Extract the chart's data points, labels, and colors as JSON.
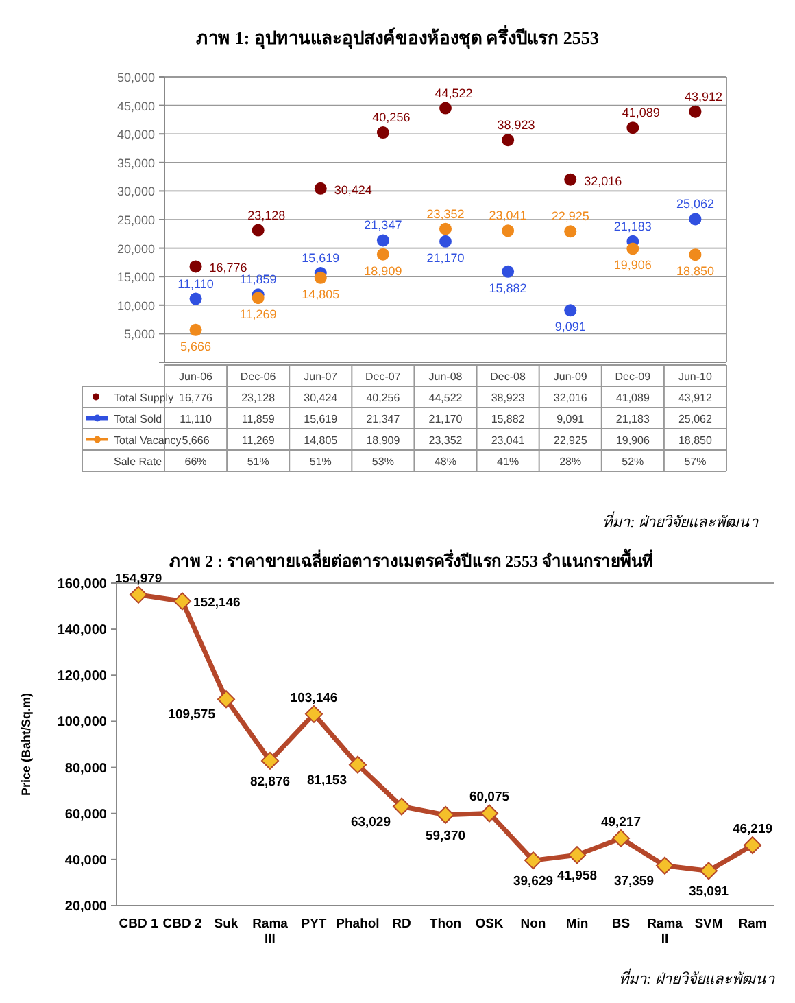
{
  "chart_data": [
    {
      "type": "scatter",
      "title": "ภาพ 1: อุปทานและอุปสงค์ของห้องชุด ครึ่งปีแรก 2553",
      "categories": [
        "Jun-06",
        "Dec-06",
        "Jun-07",
        "Dec-07",
        "Jun-08",
        "Dec-08",
        "Jun-09",
        "Dec-09",
        "Jun-10"
      ],
      "series": [
        {
          "name": "Total Supply",
          "color": "#800000",
          "values": [
            16776,
            23128,
            30424,
            40256,
            44522,
            38923,
            32016,
            41089,
            43912
          ],
          "value_labels": [
            "16,776",
            "23,128",
            "30,424",
            "40,256",
            "44,522",
            "38,923",
            "32,016",
            "41,089",
            "43,912"
          ]
        },
        {
          "name": "Total Sold",
          "color": "#3050e0",
          "values": [
            11110,
            11859,
            15619,
            21347,
            21170,
            15882,
            9091,
            21183,
            25062
          ],
          "value_labels": [
            "11,110",
            "11,859",
            "15,619",
            "21,347",
            "21,170",
            "15,882",
            "9,091",
            "21,183",
            "25,062"
          ]
        },
        {
          "name": "Total Vacancy",
          "color": "#f08a1c",
          "values": [
            5666,
            11269,
            14805,
            18909,
            23352,
            23041,
            22925,
            19906,
            18850
          ],
          "value_labels": [
            "5,666",
            "11,269",
            "14,805",
            "18,909",
            "23,352",
            "23,041",
            "22,925",
            "19,906",
            "18,850"
          ]
        }
      ],
      "ylim": [
        0,
        50000
      ],
      "yticks": [
        {
          "value": 0,
          "label": null
        },
        {
          "value": 5000,
          "label": "5,000"
        },
        {
          "value": 10000,
          "label": "10,000"
        },
        {
          "value": 15000,
          "label": "15,000"
        },
        {
          "value": 20000,
          "label": "20,000"
        },
        {
          "value": 25000,
          "label": "25,000"
        },
        {
          "value": 30000,
          "label": "30,000"
        },
        {
          "value": 35000,
          "label": "35,000"
        },
        {
          "value": 40000,
          "label": "40,000"
        },
        {
          "value": 45000,
          "label": "45,000"
        },
        {
          "value": 50000,
          "label": "50,000"
        }
      ],
      "grid": "y",
      "marker": "circle",
      "legend": "bottom",
      "annotations": [
        "Sale Rate",
        "66%",
        "51%",
        "51%",
        "53%",
        "48%",
        "41%",
        "28%",
        "52%",
        "57%",
        "ที่มา: ฝ่ายวิจัยและพัฒนา"
      ]
    },
    {
      "type": "line",
      "title": "ภาพ 2 : ราคาขายเฉลี่ยต่อตารางเมตรครึ่งปีแรก 2553 จำแนกรายพื้นที่",
      "ylabel": "Price (Baht/Sq.m)",
      "categories": [
        "CBD 1",
        "CBD 2",
        "Suk",
        "Rama III",
        "PYT",
        "Phahol",
        "RD",
        "Thon",
        "OSK",
        "Non",
        "Min",
        "BS",
        "Rama II",
        "SVM",
        "Ram"
      ],
      "series": [
        {
          "color": "#b5472a",
          "colors": [
            "#f5c02a",
            "#f5c02a",
            "#f5c02a",
            "#f5c02a",
            "#f5c02a",
            "#f5c02a",
            "#f5c02a",
            "#f5c02a",
            "#f5c02a",
            "#f5c02a",
            "#f5c02a",
            "#f5c02a",
            "#f5c02a",
            "#f5c02a",
            "#f5c02a"
          ],
          "values": [
            154979,
            152146,
            109575,
            82876,
            103146,
            81153,
            63029,
            59370,
            60075,
            39629,
            41958,
            49217,
            37359,
            35091,
            46219
          ],
          "value_labels": [
            "154,979",
            "152,146",
            "109,575",
            "82,876",
            "103,146",
            "81,153",
            "63,029",
            "59,370",
            "60,075",
            "39,629",
            "41,958",
            "49,217",
            "37,359",
            "35,091",
            "46,219"
          ]
        }
      ],
      "ylim": [
        20000,
        160000
      ],
      "yticks": [
        {
          "value": 20000,
          "label": "20,000"
        },
        {
          "value": 40000,
          "label": "40,000"
        },
        {
          "value": 60000,
          "label": "60,000"
        },
        {
          "value": 80000,
          "label": "80,000"
        },
        {
          "value": 100000,
          "label": "100,000"
        },
        {
          "value": 120000,
          "label": "120,000"
        },
        {
          "value": 140000,
          "label": "140,000"
        },
        {
          "value": 160000,
          "label": "160,000"
        }
      ],
      "marker": "diamond",
      "line_style": "solid",
      "annotations": [
        "ที่มา: ฝ่ายวิจัยและพัฒนา"
      ]
    }
  ]
}
